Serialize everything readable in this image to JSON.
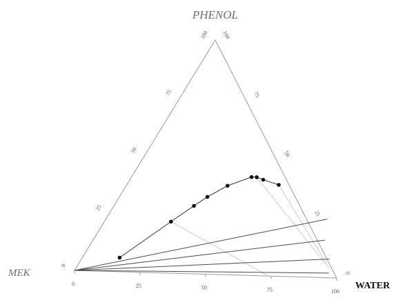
{
  "chart_data": {
    "type": "ternary",
    "vertices": {
      "top": "PHENOL",
      "left": "MEK",
      "right": "WATER"
    },
    "ticks": {
      "bottom": [
        "0",
        "25",
        "50",
        "75",
        "100"
      ],
      "left": [
        "0",
        "25",
        "50",
        "75",
        "100"
      ],
      "right": [
        "0",
        "25",
        "50",
        "75",
        "100"
      ]
    },
    "binodal_points": [
      {
        "x": 0.14,
        "y": 0.06
      },
      {
        "x": 0.25,
        "y": 0.22
      },
      {
        "x": 0.3,
        "y": 0.29
      },
      {
        "x": 0.33,
        "y": 0.33
      },
      {
        "x": 0.38,
        "y": 0.38
      },
      {
        "x": 0.45,
        "y": 0.42
      },
      {
        "x": 0.47,
        "y": 0.42
      },
      {
        "x": 0.5,
        "y": 0.41
      },
      {
        "x": 0.57,
        "y": 0.39
      }
    ],
    "tie_lines": [
      {
        "from": {
          "x": 0.0,
          "y": 0.0
        },
        "to": {
          "x": 0.83,
          "y": 0.25
        }
      },
      {
        "from": {
          "x": 0.0,
          "y": 0.0
        },
        "to": {
          "x": 0.87,
          "y": 0.16
        }
      },
      {
        "from": {
          "x": 0.0,
          "y": 0.0
        },
        "to": {
          "x": 0.93,
          "y": 0.08
        }
      },
      {
        "from": {
          "x": 0.0,
          "y": 0.0
        },
        "to": {
          "x": 0.96,
          "y": 0.02
        }
      }
    ],
    "guide_lines": [
      {
        "from": {
          "x": 0.25,
          "y": 0.22
        },
        "to": {
          "x": 0.74,
          "y": 0.0
        }
      },
      {
        "from": {
          "x": 0.47,
          "y": 0.42
        },
        "to": {
          "x": 0.95,
          "y": 0.04
        }
      },
      {
        "from": {
          "x": 0.57,
          "y": 0.39
        },
        "to": {
          "x": 0.93,
          "y": 0.06
        }
      }
    ]
  }
}
